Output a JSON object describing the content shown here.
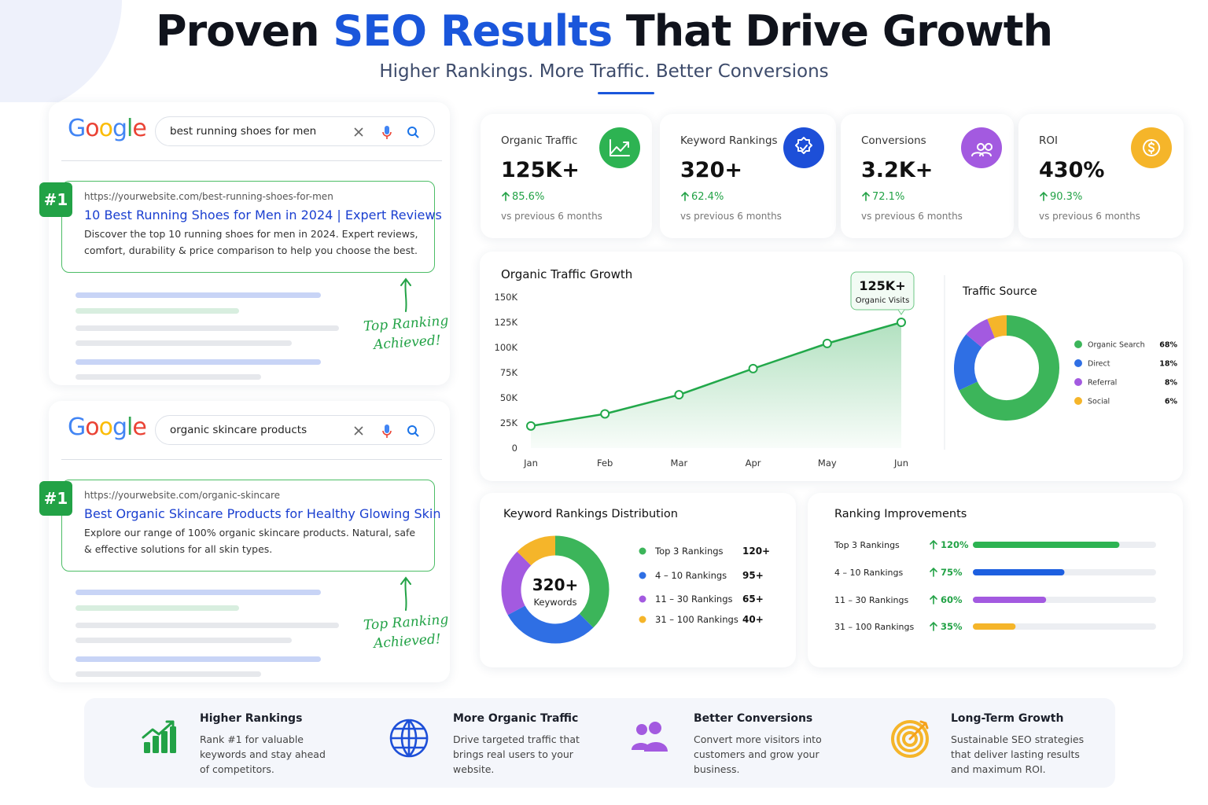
{
  "header": {
    "title_start": "Proven",
    "title_highlight": "SEO Results",
    "title_end": "That Drive Growth",
    "subtitle": "Higher Rankings. More Traffic. Better Conversions"
  },
  "search_results": [
    {
      "logo": "Google",
      "query": "best running shoes for men",
      "rank": "#1",
      "url": "https://yourwebsite.com/best-running-shoes-for-men",
      "title": "10 Best Running Shoes for Men in 2024 | Expert Reviews",
      "description": "Discover the top 10 running shoes for men in 2024. Expert reviews, comfort, durability & price comparison to help you choose the best.",
      "annotation": "Top Ranking Achieved!"
    },
    {
      "logo": "Google",
      "query": "organic skincare products",
      "rank": "#1",
      "url": "https://yourwebsite.com/organic-skincare",
      "title": "Best Organic Skincare Products for Healthy Glowing Skin",
      "description": "Explore our range of 100% organic skincare products. Natural, safe & effective solutions for all skin types.",
      "annotation": "Top Ranking Achieved!"
    }
  ],
  "metrics": [
    {
      "label": "Organic Traffic",
      "value": "125K+",
      "change": "85.6%",
      "period": "vs previous 6 months",
      "color": "#2db352"
    },
    {
      "label": "Keyword Rankings",
      "value": "320+",
      "change": "62.4%",
      "period": "vs previous 6 months",
      "color": "#1d4fd8"
    },
    {
      "label": "Conversions",
      "value": "3.2K+",
      "change": "72.1%",
      "period": "vs previous 6 months",
      "color": "#a35ae0"
    },
    {
      "label": "ROI",
      "value": "430%",
      "change": "90.3%",
      "period": "vs previous 6 months",
      "color": "#f5b52a"
    }
  ],
  "traffic_chart": {
    "type": "line",
    "title": "Organic Traffic Growth",
    "categories": [
      "Jan",
      "Feb",
      "Mar",
      "Apr",
      "May",
      "Jun"
    ],
    "values": [
      22000,
      34000,
      53000,
      79000,
      104000,
      125000
    ],
    "color": "#22a84a",
    "ylim": [
      0,
      150000
    ],
    "yticks": [
      0,
      {
        "value": 25000,
        "label": "25K"
      },
      {
        "value": 50000,
        "label": "50K"
      },
      {
        "value": 75000,
        "label": "75K"
      },
      {
        "value": 100000,
        "label": "100K"
      },
      {
        "value": 125000,
        "label": "125K"
      },
      {
        "value": 150000,
        "label": "150K"
      }
    ],
    "callout_value": "125K+",
    "callout_label": "Organic Visits"
  },
  "traffic_source": {
    "type": "donut",
    "title": "Traffic Source",
    "categories": [
      "Organic Search",
      "Direct",
      "Referral",
      "Social"
    ],
    "values": [
      68,
      18,
      8,
      6
    ],
    "value_labels": [
      "68%",
      "18%",
      "8%",
      "6%"
    ],
    "colors": [
      "#3cb55a",
      "#2f6fe4",
      "#a35ae0",
      "#f5b52a"
    ]
  },
  "keyword_distribution": {
    "type": "donut",
    "title": "Keyword Rankings Distribution",
    "center_value": "320+",
    "center_label": "Keywords",
    "categories": [
      "Top 3 Rankings",
      "4 – 10 Rankings",
      "11 – 30 Rankings",
      "31 – 100 Rankings"
    ],
    "values": [
      120,
      95,
      65,
      40
    ],
    "value_labels": [
      "120+",
      "95+",
      "65+",
      "40+"
    ],
    "colors": [
      "#3cb55a",
      "#2f6fe4",
      "#a35ae0",
      "#f5b52a"
    ]
  },
  "ranking_improvements": {
    "type": "bar",
    "title": "Ranking Improvements",
    "categories": [
      "Top 3 Rankings",
      "4 – 10 Rankings",
      "11 – 30 Rankings",
      "31 – 100 Rankings"
    ],
    "values": [
      120,
      75,
      60,
      35
    ],
    "value_labels": [
      "120%",
      "75%",
      "60%",
      "35%"
    ],
    "xlim": [
      0,
      150
    ],
    "colors": [
      "#2db352",
      "#1d5fe0",
      "#a35ae0",
      "#f5b52a"
    ]
  },
  "features": [
    {
      "title": "Higher Rankings",
      "text": "Rank #1 for valuable keywords and stay ahead of competitors."
    },
    {
      "title": "More Organic Traffic",
      "text": "Drive targeted traffic that brings real users to your website."
    },
    {
      "title": "Better Conversions",
      "text": "Convert more visitors into customers and grow your business."
    },
    {
      "title": "Long-Term Growth",
      "text": "Sustainable SEO strategies that deliver lasting results and maximum ROI."
    }
  ]
}
